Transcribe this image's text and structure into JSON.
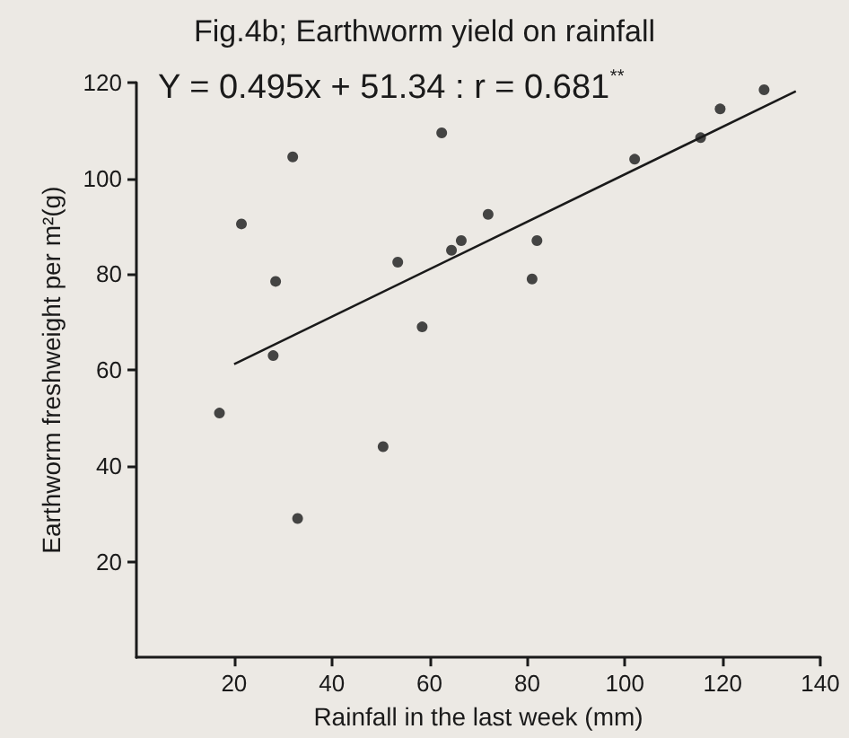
{
  "chart_data": {
    "type": "scatter",
    "title": "Fig.4b; Earthworm yield on rainfall",
    "xlabel": "Rainfall in the last week (mm)",
    "ylabel": "Earthworm freshweight per m²(g)",
    "annotations": [
      "Y = 0.495x + 51.34 : r = 0.681$^{**}$"
    ],
    "series": [
      {
        "color": "#1a1a1a",
        "x": [
          17,
          21.5,
          28,
          28.5,
          32,
          33,
          50.5,
          53.5,
          58.5,
          62.5,
          64.5,
          66.5,
          72,
          81,
          82,
          102,
          115.5,
          119.5,
          128.5
        ],
        "values": [
          51,
          90.5,
          63,
          78.5,
          104.5,
          29,
          44,
          82.5,
          69,
          109.5,
          85,
          87,
          92.5,
          79,
          87,
          104,
          108.5,
          114.5,
          118.5
        ]
      },
      {
        "type": "line",
        "color": "#1a1a1a",
        "x": [
          20,
          135
        ],
        "values": [
          61.2,
          118.2
        ],
        "marker": "none"
      }
    ],
    "xlim": [
      0,
      140
    ],
    "xticks": [
      20,
      40,
      60,
      80,
      100,
      120,
      140
    ],
    "ylim": [
      0,
      120
    ],
    "yticks": [
      20,
      40,
      60,
      80,
      100,
      120
    ],
    "grid": false,
    "marker": "circle"
  }
}
